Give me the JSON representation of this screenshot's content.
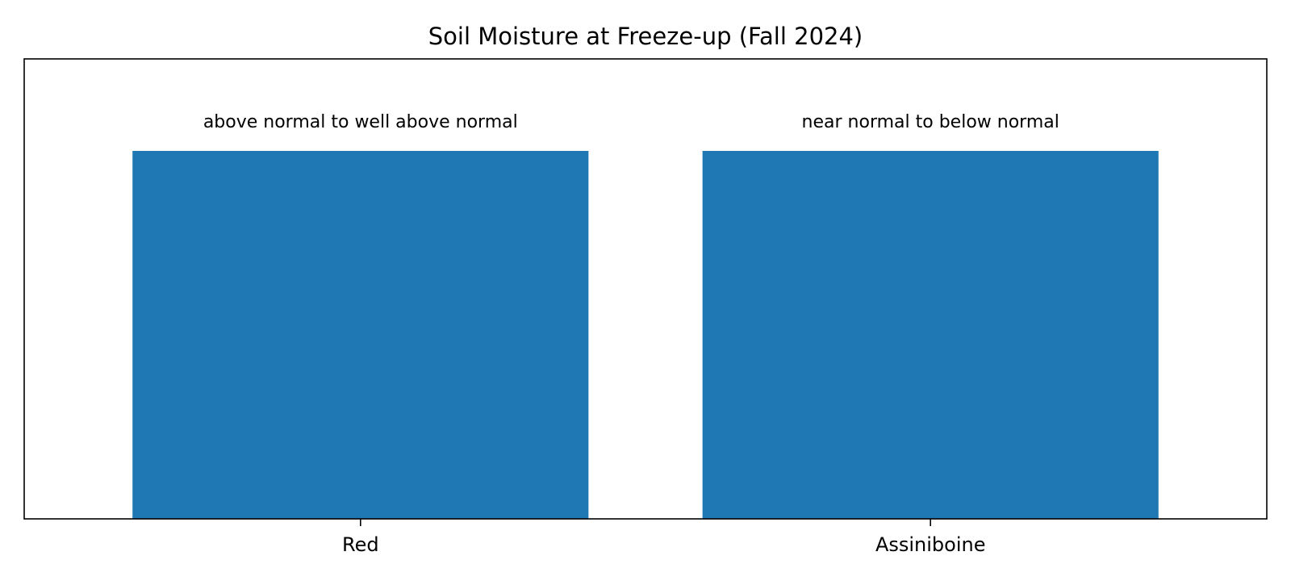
{
  "chart_data": {
    "type": "bar",
    "title": "Soil Moisture at Freeze-up (Fall 2024)",
    "xlabel": "",
    "ylabel": "",
    "categories": [
      "Red",
      "Assiniboine"
    ],
    "values": [
      1,
      1
    ],
    "data_labels": [
      "above normal to well above normal",
      "near normal to below normal"
    ],
    "ylim": [
      0,
      1.25
    ],
    "y_ticks_visible": false,
    "grid": false,
    "legend": "none",
    "bar_color": "#1f77b4"
  }
}
